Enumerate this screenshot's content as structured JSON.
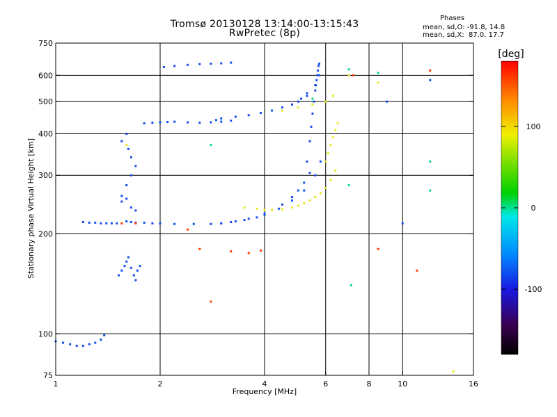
{
  "header": {
    "title_line1": "Tromsø 20130128 13:14:00-13:15:43",
    "title_line2": "RwPretec (8p)"
  },
  "stats": {
    "heading": "Phases",
    "o_line": "mean, sd,O: -91.8, 14.8",
    "x_line": "mean, sd,X:  87.0, 17.7"
  },
  "colorbar": {
    "unit": "[deg]",
    "ticks": [
      {
        "value": 100,
        "label": "100"
      },
      {
        "value": 0,
        "label": "0"
      },
      {
        "value": -100,
        "label": "-100"
      }
    ],
    "range": [
      -180,
      180
    ]
  },
  "colors": {
    "o_mode": "#1a3ce6",
    "x_mode": "#e8e820",
    "grid": "#000000"
  },
  "chart_data": {
    "type": "scatter",
    "title": "Tromsø 20130128 13:14:00-13:15:43",
    "subtitle": "RwPretec (8p)",
    "xlabel": "Frequency [MHz]",
    "ylabel": "Stationary phase Virtual Height [km]",
    "x_scale": "log",
    "y_scale": "log",
    "xlim": [
      1,
      16
    ],
    "ylim": [
      75,
      750
    ],
    "x_ticks": [
      1,
      2,
      4,
      6,
      8,
      10,
      16
    ],
    "y_ticks": [
      75,
      100,
      200,
      300,
      400,
      500,
      600,
      750
    ],
    "x_grid": [
      2,
      4,
      6,
      8,
      10
    ],
    "y_grid": [
      100,
      200,
      300,
      400,
      500,
      600
    ],
    "series": [
      {
        "color_phase_deg": -90,
        "x": [
          1.0,
          1.05,
          1.1,
          1.15,
          1.2,
          1.25,
          1.3,
          1.35,
          1.38,
          1.2,
          1.25,
          1.3,
          1.35,
          1.4,
          1.45,
          1.5,
          1.52,
          1.55,
          1.58,
          1.6,
          1.62,
          1.65,
          1.68,
          1.7,
          1.72,
          1.75,
          1.55,
          1.6,
          1.65,
          1.7,
          1.55,
          1.6,
          1.62,
          1.65,
          1.6,
          1.65,
          1.7,
          1.8,
          1.9,
          2.0,
          2.2,
          2.5,
          2.8,
          3.0,
          3.2,
          3.5,
          3.8,
          4.0,
          4.2,
          4.5,
          4.8,
          5.0,
          5.2,
          5.4,
          5.3,
          5.4,
          5.45,
          5.5,
          5.55,
          5.6,
          5.62,
          5.65,
          5.68,
          5.7,
          5.72,
          5.75,
          3.0,
          3.3,
          3.6,
          4.0,
          4.4,
          4.8,
          5.2,
          5.6,
          5.8,
          1.8,
          1.9,
          2.0,
          2.1,
          2.2,
          2.4,
          2.6,
          2.8,
          3.0,
          3.2,
          2.9,
          3.0,
          3.3,
          3.6,
          3.9,
          4.2,
          4.5,
          4.8,
          5.1,
          5.3,
          2.05,
          2.2,
          2.4,
          2.6,
          2.8,
          3.0,
          3.2,
          5.0,
          5.3,
          5.6,
          5.75,
          1.55,
          1.6,
          1.65,
          1.7,
          10.0,
          12.0,
          9.0
        ],
        "y": [
          95,
          94,
          93,
          92,
          92,
          93,
          94,
          96,
          99,
          217,
          216,
          216,
          215,
          215,
          215,
          215,
          150,
          155,
          160,
          165,
          170,
          158,
          150,
          145,
          155,
          160,
          260,
          280,
          300,
          320,
          380,
          400,
          360,
          340,
          218,
          217,
          216,
          216,
          215,
          215,
          214,
          214,
          214,
          215,
          217,
          220,
          224,
          230,
          236,
          245,
          258,
          270,
          285,
          305,
          330,
          380,
          420,
          460,
          500,
          540,
          560,
          580,
          600,
          620,
          640,
          650,
          215,
          218,
          222,
          228,
          238,
          252,
          270,
          300,
          330,
          430,
          432,
          433,
          434,
          435,
          433,
          432,
          433,
          435,
          438,
          440,
          445,
          450,
          455,
          462,
          470,
          480,
          490,
          510,
          530,
          635,
          640,
          645,
          648,
          650,
          652,
          655,
          500,
          520,
          560,
          600,
          250,
          255,
          240,
          235,
          215,
          580,
          500
        ]
      },
      {
        "color_phase_deg": 90,
        "x": [
          3.5,
          3.8,
          4.0,
          4.2,
          4.5,
          4.8,
          5.0,
          5.2,
          5.4,
          5.6,
          5.8,
          6.0,
          6.2,
          6.4,
          6.0,
          6.1,
          6.2,
          6.3,
          6.4,
          6.5,
          4.5,
          5.0,
          5.5,
          6.0,
          6.3,
          1.6,
          7.0,
          8.5,
          12.0,
          14.0
        ],
        "y": [
          240,
          238,
          236,
          236,
          237,
          240,
          243,
          247,
          252,
          258,
          265,
          275,
          290,
          310,
          330,
          350,
          370,
          390,
          410,
          430,
          470,
          480,
          490,
          500,
          520,
          370,
          600,
          570,
          620,
          77
        ]
      },
      {
        "color_phase_deg": 0,
        "x": [
          2.8,
          7.0,
          7.0,
          8.5,
          12.0,
          12.0,
          7.1,
          5.5
        ],
        "y": [
          370,
          625,
          280,
          610,
          330,
          270,
          140,
          510
        ]
      },
      {
        "color_phase_deg": 160,
        "x": [
          1.55,
          1.7,
          2.4,
          2.6,
          3.2,
          3.6,
          3.9,
          7.2,
          8.5,
          11.0,
          12.0,
          2.8
        ],
        "y": [
          215,
          215,
          206,
          180,
          177,
          175,
          178,
          600,
          180,
          155,
          620,
          125
        ]
      }
    ]
  }
}
